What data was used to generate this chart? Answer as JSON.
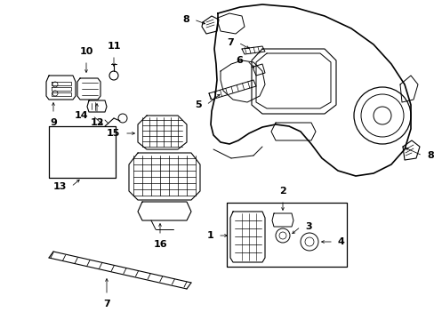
{
  "background_color": "#ffffff",
  "fig_width": 4.89,
  "fig_height": 3.6,
  "dpi": 100,
  "line_color": "#000000",
  "label_color": "#000000"
}
